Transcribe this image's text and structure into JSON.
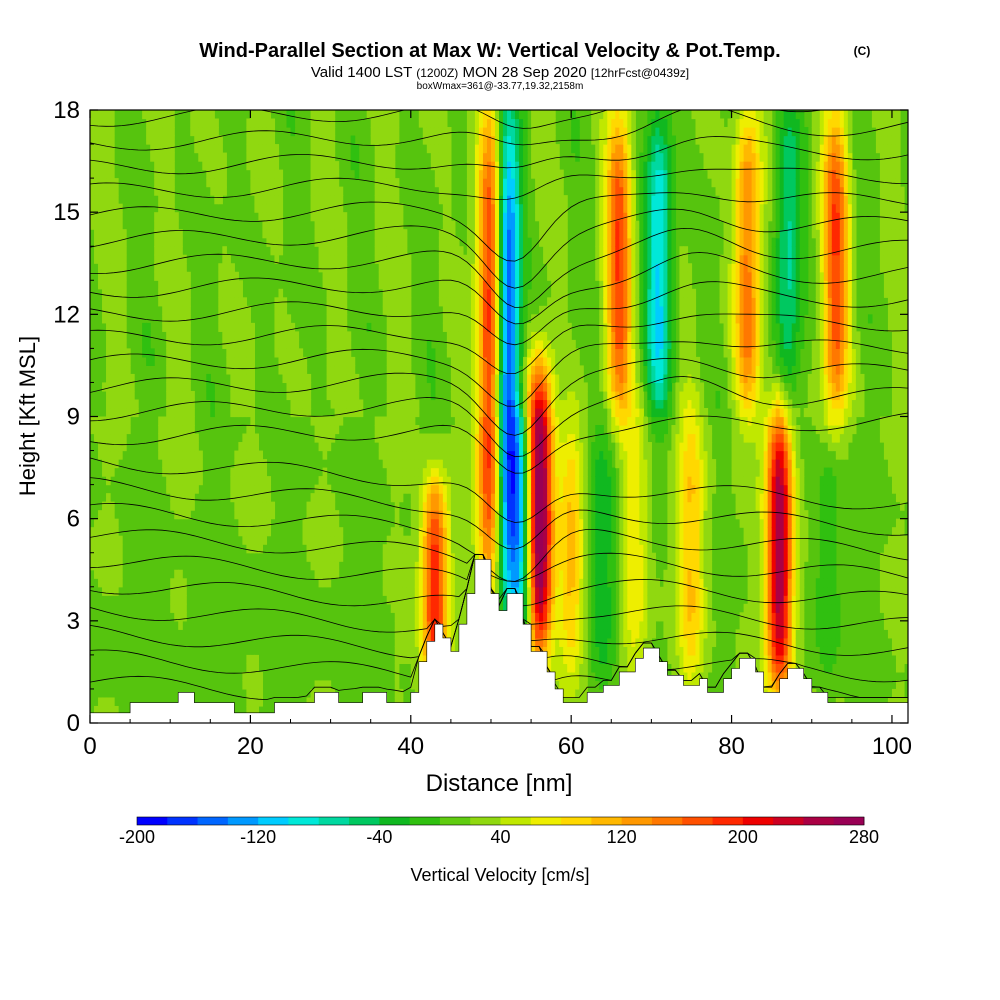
{
  "chart_data": {
    "type": "heatmap",
    "title": "Wind-Parallel Section at Max W: Vertical Velocity & Pot.Temp.",
    "title_mark": "(C)",
    "subtitle_parts": [
      "Valid 1400 LST",
      "(1200Z)",
      "MON 28 Sep 2020",
      "[12hrFcst@0439z]"
    ],
    "subtitle2": "boxWmax=361@-33.77,19.32,2158m",
    "xlabel": "Distance [nm]",
    "ylabel": "Height [Kft MSL]",
    "xlim": [
      0,
      102
    ],
    "ylim": [
      0,
      18
    ],
    "x_ticks": [
      0,
      20,
      40,
      60,
      80,
      100
    ],
    "y_ticks": [
      0,
      3,
      6,
      9,
      12,
      15,
      18
    ],
    "colorbar": {
      "label": "Vertical Velocity [cm/s]",
      "tick_labels": [
        "-200",
        "-120",
        "-40",
        "40",
        "120",
        "200",
        "280"
      ],
      "tick_values": [
        -200,
        -120,
        -40,
        40,
        120,
        200,
        280
      ],
      "range": [
        -200,
        280
      ],
      "colors": [
        "#0000ff",
        "#0033ff",
        "#0066ff",
        "#0099ff",
        "#00ccff",
        "#00e8d8",
        "#00d8a0",
        "#00c860",
        "#10b820",
        "#30c010",
        "#60cc10",
        "#90d810",
        "#c0e800",
        "#eeee00",
        "#ffd800",
        "#ffb800",
        "#ff9800",
        "#ff7800",
        "#ff5000",
        "#ff2800",
        "#ee0000",
        "#cc0022",
        "#aa0044",
        "#990055"
      ]
    },
    "terrain_kft": [
      [
        0,
        0.3
      ],
      [
        5,
        0.3
      ],
      [
        5,
        0.6
      ],
      [
        11,
        0.6
      ],
      [
        11,
        0.9
      ],
      [
        13,
        0.9
      ],
      [
        13,
        0.6
      ],
      [
        18,
        0.6
      ],
      [
        18,
        0.3
      ],
      [
        23,
        0.3
      ],
      [
        23,
        0.6
      ],
      [
        28,
        0.6
      ],
      [
        28,
        0.9
      ],
      [
        31,
        0.9
      ],
      [
        31,
        0.6
      ],
      [
        34,
        0.6
      ],
      [
        34,
        0.9
      ],
      [
        37,
        0.9
      ],
      [
        37,
        0.6
      ],
      [
        40,
        0.6
      ],
      [
        40,
        0.9
      ],
      [
        41,
        0.9
      ],
      [
        41,
        1.8
      ],
      [
        42,
        1.8
      ],
      [
        42,
        2.4
      ],
      [
        43,
        2.4
      ],
      [
        43,
        2.9
      ],
      [
        44,
        2.9
      ],
      [
        44,
        2.5
      ],
      [
        45,
        2.5
      ],
      [
        45,
        2.1
      ],
      [
        46,
        2.1
      ],
      [
        46,
        2.9
      ],
      [
        47,
        2.9
      ],
      [
        47,
        3.8
      ],
      [
        48,
        3.8
      ],
      [
        48,
        4.8
      ],
      [
        50,
        4.8
      ],
      [
        50,
        3.8
      ],
      [
        51,
        3.8
      ],
      [
        51,
        3.3
      ],
      [
        52,
        3.3
      ],
      [
        52,
        3.8
      ],
      [
        54,
        3.8
      ],
      [
        54,
        2.9
      ],
      [
        55,
        2.9
      ],
      [
        55,
        2.1
      ],
      [
        57,
        2.1
      ],
      [
        57,
        1.5
      ],
      [
        58,
        1.5
      ],
      [
        58,
        1.0
      ],
      [
        59,
        1.0
      ],
      [
        59,
        0.6
      ],
      [
        62,
        0.6
      ],
      [
        62,
        0.9
      ],
      [
        64,
        0.9
      ],
      [
        64,
        1.1
      ],
      [
        66,
        1.1
      ],
      [
        66,
        1.5
      ],
      [
        68,
        1.5
      ],
      [
        68,
        1.9
      ],
      [
        69,
        1.9
      ],
      [
        69,
        2.2
      ],
      [
        71,
        2.2
      ],
      [
        71,
        1.8
      ],
      [
        72,
        1.8
      ],
      [
        72,
        1.4
      ],
      [
        74,
        1.4
      ],
      [
        74,
        1.1
      ],
      [
        76,
        1.1
      ],
      [
        76,
        1.3
      ],
      [
        77,
        1.3
      ],
      [
        77,
        0.9
      ],
      [
        79,
        0.9
      ],
      [
        79,
        1.3
      ],
      [
        80,
        1.3
      ],
      [
        80,
        1.6
      ],
      [
        81,
        1.6
      ],
      [
        81,
        1.9
      ],
      [
        83,
        1.9
      ],
      [
        83,
        1.5
      ],
      [
        84,
        1.5
      ],
      [
        84,
        0.9
      ],
      [
        86,
        0.9
      ],
      [
        86,
        1.3
      ],
      [
        87,
        1.3
      ],
      [
        87,
        1.6
      ],
      [
        89,
        1.6
      ],
      [
        89,
        1.3
      ],
      [
        90,
        1.3
      ],
      [
        90,
        0.9
      ],
      [
        92,
        0.9
      ],
      [
        92,
        0.6
      ],
      [
        102,
        0.6
      ]
    ],
    "updrafts": [
      {
        "x": 43,
        "z0": 0.5,
        "z1": 7.2,
        "w": 180
      },
      {
        "x": 50,
        "z0": 3.5,
        "z1": 18,
        "w": 200
      },
      {
        "x": 56,
        "z0": 2.0,
        "z1": 10.5,
        "w": 280
      },
      {
        "x": 86,
        "z0": 0.8,
        "z1": 9.5,
        "w": 240
      },
      {
        "x": 75,
        "z0": 1.0,
        "z1": 9.5,
        "w": 80
      },
      {
        "x": 68,
        "z0": 1.0,
        "z1": 9.5,
        "w": 60
      },
      {
        "x": 60,
        "z0": 1.0,
        "z1": 9.0,
        "w": 90
      },
      {
        "x": 66,
        "z0": 9.0,
        "z1": 18,
        "w": 150
      },
      {
        "x": 82,
        "z0": 9.0,
        "z1": 18,
        "w": 130
      },
      {
        "x": 93,
        "z0": 9.0,
        "z1": 18,
        "w": 150
      }
    ],
    "downdrafts": [
      {
        "x": 52,
        "z0": 3.5,
        "z1": 18,
        "w": -200
      },
      {
        "x": 54,
        "z0": 2.0,
        "z1": 9.0,
        "w": -120
      },
      {
        "x": 71,
        "z0": 9.0,
        "z1": 18,
        "w": -120
      },
      {
        "x": 87,
        "z0": 9.0,
        "z1": 18,
        "w": -80
      },
      {
        "x": 64,
        "z0": 1.0,
        "z1": 9.0,
        "w": -60
      },
      {
        "x": 92,
        "z0": 1.0,
        "z1": 8.0,
        "w": -40
      }
    ]
  }
}
